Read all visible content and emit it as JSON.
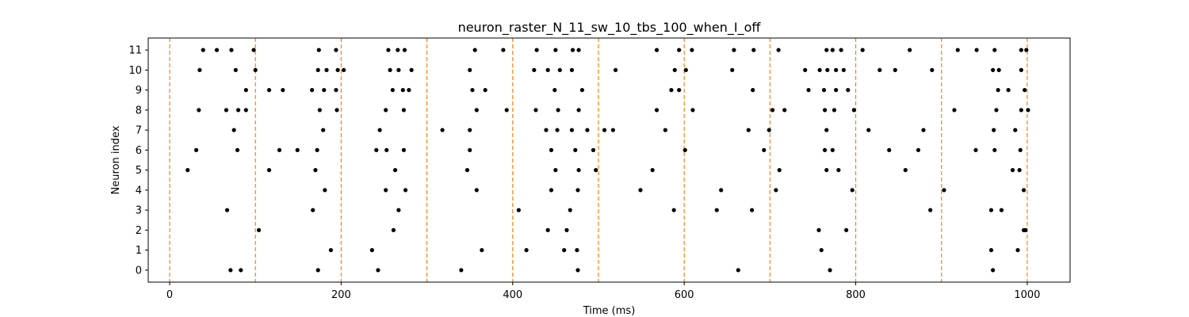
{
  "chart_data": {
    "type": "scatter",
    "title": "neuron_raster_N_11_sw_10_tbs_100_when_I_off",
    "xlabel": "Time (ms)",
    "ylabel": "Neuron index",
    "xlim": [
      -25,
      1050
    ],
    "ylim": [
      -0.6,
      11.6
    ],
    "xticks": [
      0,
      200,
      400,
      600,
      800,
      1000
    ],
    "yticks": [
      0,
      1,
      2,
      3,
      4,
      5,
      6,
      7,
      8,
      9,
      10,
      11
    ],
    "vlines": [
      0,
      100,
      200,
      300,
      400,
      500,
      600,
      700,
      800,
      900,
      1000
    ],
    "grid": false,
    "colors": {
      "points": "#000000",
      "vlines": "#ff7f0e"
    },
    "series": [
      {
        "neuron": 0,
        "x": [
          71,
          83,
          173,
          243,
          340,
          476,
          663,
          770,
          960
        ]
      },
      {
        "neuron": 1,
        "x": [
          188,
          236,
          364,
          416,
          460,
          475,
          760,
          958,
          989
        ]
      },
      {
        "neuron": 2,
        "x": [
          104,
          261,
          441,
          463,
          757,
          789,
          996,
          998
        ]
      },
      {
        "neuron": 3,
        "x": [
          67,
          167,
          267,
          407,
          467,
          588,
          638,
          679,
          887,
          958,
          970
        ]
      },
      {
        "neuron": 4,
        "x": [
          181,
          252,
          275,
          358,
          445,
          476,
          549,
          643,
          707,
          796,
          903,
          996
        ]
      },
      {
        "neuron": 5,
        "x": [
          21,
          116,
          170,
          263,
          347,
          450,
          477,
          497,
          563,
          711,
          766,
          780,
          858,
          983,
          991
        ]
      },
      {
        "neuron": 6,
        "x": [
          31,
          79,
          128,
          149,
          172,
          241,
          253,
          273,
          350,
          445,
          473,
          494,
          601,
          693,
          764,
          773,
          839,
          873,
          940,
          962,
          992
        ]
      },
      {
        "neuron": 7,
        "x": [
          75,
          179,
          245,
          318,
          350,
          439,
          452,
          469,
          487,
          507,
          517,
          578,
          675,
          699,
          766,
          815,
          879,
          961,
          986
        ]
      },
      {
        "neuron": 8,
        "x": [
          34,
          66,
          80,
          89,
          175,
          195,
          252,
          273,
          358,
          393,
          427,
          453,
          477,
          568,
          610,
          703,
          717,
          764,
          775,
          798,
          915,
          964,
          993,
          1001
        ]
      },
      {
        "neuron": 9,
        "x": [
          89,
          116,
          132,
          166,
          180,
          194,
          260,
          272,
          279,
          353,
          368,
          449,
          481,
          585,
          594,
          680,
          745,
          763,
          777,
          791,
          966,
          978,
          997
        ]
      },
      {
        "neuron": 10,
        "x": [
          35,
          77,
          100,
          173,
          183,
          196,
          203,
          257,
          267,
          282,
          350,
          425,
          441,
          455,
          469,
          520,
          589,
          602,
          656,
          741,
          758,
          767,
          777,
          786,
          828,
          846,
          889,
          960,
          967,
          993
        ]
      },
      {
        "neuron": 11,
        "x": [
          39,
          55,
          72,
          98,
          174,
          194,
          255,
          266,
          274,
          356,
          389,
          428,
          450,
          470,
          477,
          568,
          594,
          609,
          658,
          681,
          710,
          766,
          773,
          783,
          808,
          863,
          919,
          941,
          962,
          993,
          999
        ]
      }
    ]
  }
}
